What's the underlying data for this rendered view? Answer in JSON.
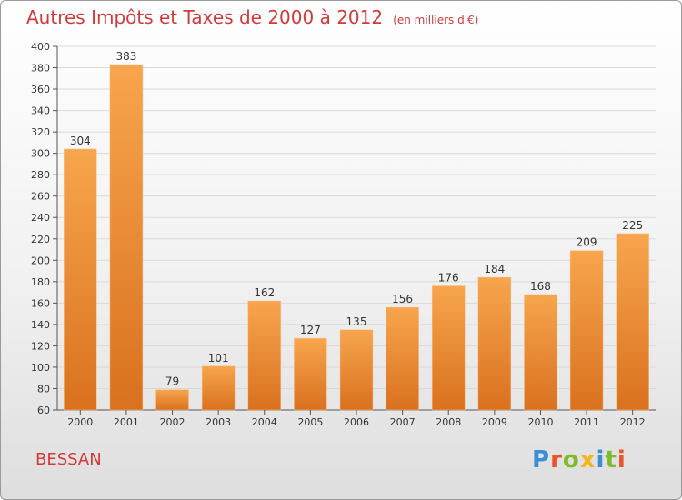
{
  "header": {
    "title": "Autres Impôts et Taxes de 2000 à 2012",
    "unit": "(en milliers d'€)"
  },
  "footer": {
    "commune": "BESSAN",
    "logo_text": "Proxiti"
  },
  "colors": {
    "title": "#d23a3a",
    "bar_top": "#f7a54e",
    "bar_bottom": "#d9711f",
    "grid": "#d9d9d9",
    "logo_letters": [
      "#3a8fd6",
      "#e8542b",
      "#7dbb2a",
      "#f2b51c",
      "#3a8fd6",
      "#7dbb2a",
      "#e8542b"
    ]
  },
  "chart_data": {
    "type": "bar",
    "title": "Autres Impôts et Taxes de 2000 à 2012",
    "subtitle": "(en milliers d'€)",
    "xlabel": "",
    "ylabel": "",
    "categories": [
      "2000",
      "2001",
      "2002",
      "2003",
      "2004",
      "2005",
      "2006",
      "2007",
      "2008",
      "2009",
      "2010",
      "2011",
      "2012"
    ],
    "values": [
      304,
      383,
      79,
      101,
      162,
      127,
      135,
      156,
      176,
      184,
      168,
      209,
      225
    ],
    "ylim": [
      60,
      400
    ],
    "yticks": [
      60,
      80,
      100,
      120,
      140,
      160,
      180,
      200,
      220,
      240,
      260,
      280,
      300,
      320,
      340,
      360,
      380,
      400
    ],
    "grid": true,
    "legend": "none"
  }
}
